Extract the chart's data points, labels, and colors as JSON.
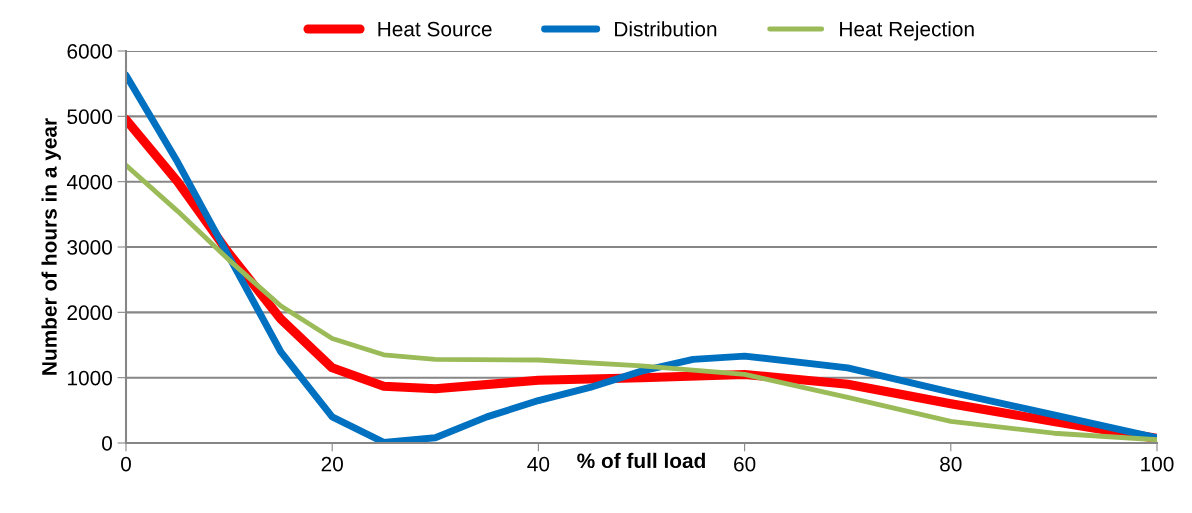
{
  "chart_data": {
    "type": "line",
    "xlabel": "% of full load",
    "ylabel": "Number of hours in a year",
    "xlim": [
      0,
      100
    ],
    "xticks": [
      0,
      20,
      40,
      60,
      80,
      100
    ],
    "ylim": [
      0,
      6000
    ],
    "yticks": [
      0,
      1000,
      2000,
      3000,
      4000,
      5000,
      6000
    ],
    "grid": "y",
    "legend": "top",
    "marker": "none",
    "line_style": "solid",
    "series": [
      {
        "name": "Heat Source",
        "color": "#ff0000",
        "x": [
          0,
          5,
          10,
          15,
          20,
          25,
          30,
          40,
          50,
          60,
          70,
          80,
          90,
          100
        ],
        "values": [
          4950,
          4000,
          2900,
          1900,
          1150,
          870,
          830,
          960,
          1000,
          1050,
          900,
          600,
          330,
          70
        ]
      },
      {
        "name": "Distribution",
        "color": "#0070c0",
        "x": [
          0,
          5,
          10,
          15,
          20,
          25,
          30,
          35,
          40,
          45,
          50,
          55,
          60,
          70,
          80,
          90,
          100
        ],
        "values": [
          5630,
          4300,
          2850,
          1400,
          400,
          10,
          80,
          400,
          650,
          850,
          1100,
          1280,
          1330,
          1150,
          780,
          430,
          80
        ]
      },
      {
        "name": "Heat Rejection",
        "color": "#9bbb59",
        "x": [
          0,
          5,
          10,
          15,
          20,
          25,
          30,
          40,
          50,
          60,
          70,
          80,
          90,
          100
        ],
        "values": [
          4250,
          3550,
          2800,
          2100,
          1600,
          1350,
          1280,
          1270,
          1180,
          1050,
          700,
          330,
          150,
          50
        ]
      }
    ]
  }
}
